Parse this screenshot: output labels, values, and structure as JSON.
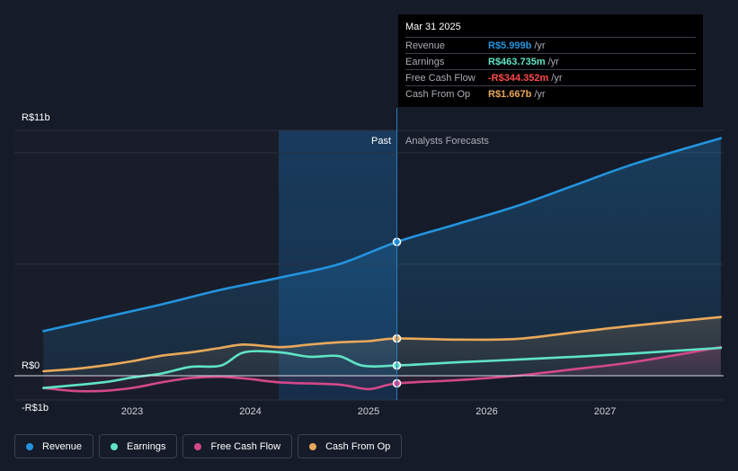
{
  "chart_data": {
    "type": "line",
    "x_ticks": [
      2023,
      2024,
      2025,
      2026,
      2027
    ],
    "xlim": [
      2022.25,
      2027.98
    ],
    "ylim": [
      -1.1,
      11.0
    ],
    "y_tick_labels": [
      {
        "value": 11,
        "label": "R$11b"
      },
      {
        "value": 0,
        "label": "R$0"
      },
      {
        "value": -1,
        "label": "-R$1b"
      }
    ],
    "split_x": 2025.24,
    "past_shade_start_x": 2024.24,
    "past_label": "Past",
    "forecast_label": "Analysts Forecasts",
    "series": [
      {
        "name": "Revenue",
        "color": "#2394df",
        "points": [
          [
            2022.25,
            2.0
          ],
          [
            2022.75,
            2.6
          ],
          [
            2023.25,
            3.2
          ],
          [
            2023.75,
            3.85
          ],
          [
            2024.25,
            4.4
          ],
          [
            2024.75,
            5.0
          ],
          [
            2025.24,
            5.999
          ],
          [
            2025.75,
            6.8
          ],
          [
            2026.25,
            7.6
          ],
          [
            2026.75,
            8.55
          ],
          [
            2027.25,
            9.5
          ],
          [
            2027.98,
            10.65
          ]
        ]
      },
      {
        "name": "Earnings",
        "color": "#5fe3c4",
        "points": [
          [
            2022.25,
            -0.55
          ],
          [
            2022.75,
            -0.3
          ],
          [
            2023.0,
            -0.08
          ],
          [
            2023.25,
            0.1
          ],
          [
            2023.5,
            0.4
          ],
          [
            2023.75,
            0.45
          ],
          [
            2023.95,
            1.05
          ],
          [
            2024.25,
            1.05
          ],
          [
            2024.5,
            0.85
          ],
          [
            2024.75,
            0.88
          ],
          [
            2024.95,
            0.45
          ],
          [
            2025.24,
            0.46
          ],
          [
            2025.75,
            0.6
          ],
          [
            2026.25,
            0.72
          ],
          [
            2026.75,
            0.85
          ],
          [
            2027.25,
            1.0
          ],
          [
            2027.98,
            1.25
          ]
        ]
      },
      {
        "name": "Free Cash Flow",
        "color": "#d4488a",
        "points": [
          [
            2022.25,
            -0.55
          ],
          [
            2022.5,
            -0.68
          ],
          [
            2022.75,
            -0.68
          ],
          [
            2023.0,
            -0.55
          ],
          [
            2023.25,
            -0.3
          ],
          [
            2023.5,
            -0.1
          ],
          [
            2023.75,
            -0.05
          ],
          [
            2024.0,
            -0.15
          ],
          [
            2024.25,
            -0.3
          ],
          [
            2024.75,
            -0.4
          ],
          [
            2025.0,
            -0.6
          ],
          [
            2025.24,
            -0.344
          ],
          [
            2025.75,
            -0.2
          ],
          [
            2026.25,
            0.0
          ],
          [
            2026.75,
            0.3
          ],
          [
            2027.25,
            0.62
          ],
          [
            2027.98,
            1.28
          ]
        ]
      },
      {
        "name": "Cash From Op",
        "color": "#e9a85a",
        "points": [
          [
            2022.25,
            0.2
          ],
          [
            2022.5,
            0.3
          ],
          [
            2022.75,
            0.45
          ],
          [
            2023.0,
            0.65
          ],
          [
            2023.25,
            0.9
          ],
          [
            2023.5,
            1.05
          ],
          [
            2023.75,
            1.25
          ],
          [
            2023.95,
            1.4
          ],
          [
            2024.25,
            1.28
          ],
          [
            2024.5,
            1.4
          ],
          [
            2024.75,
            1.5
          ],
          [
            2025.0,
            1.55
          ],
          [
            2025.24,
            1.667
          ],
          [
            2025.75,
            1.62
          ],
          [
            2026.25,
            1.65
          ],
          [
            2026.75,
            1.95
          ],
          [
            2027.25,
            2.25
          ],
          [
            2027.98,
            2.63
          ]
        ]
      }
    ]
  },
  "tooltip": {
    "date": "Mar 31 2025",
    "rows": [
      {
        "label": "Revenue",
        "value": "R$5.999b",
        "unit": "/yr",
        "color": "#2394df"
      },
      {
        "label": "Earnings",
        "value": "R$463.735m",
        "unit": "/yr",
        "color": "#5fe3c4"
      },
      {
        "label": "Free Cash Flow",
        "value": "-R$344.352m",
        "unit": "/yr",
        "color": "#ff4a4a"
      },
      {
        "label": "Cash From Op",
        "value": "R$1.667b",
        "unit": "/yr",
        "color": "#e9a85a"
      }
    ]
  },
  "legend": [
    {
      "label": "Revenue",
      "color": "#2394df"
    },
    {
      "label": "Earnings",
      "color": "#5fe3c4"
    },
    {
      "label": "Free Cash Flow",
      "color": "#d4488a"
    },
    {
      "label": "Cash From Op",
      "color": "#e9a85a"
    }
  ]
}
